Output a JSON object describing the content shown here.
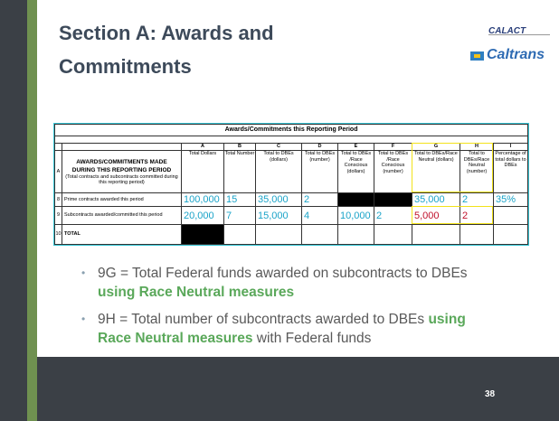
{
  "header": {
    "title": "Section A: Awards and Commitments"
  },
  "logos": [
    "CALACT",
    "Caltrans"
  ],
  "table": {
    "title": "Awards/Commitments this Reporting Period",
    "letters": [
      "A",
      "B",
      "C",
      "D",
      "E",
      "F",
      "G",
      "H",
      "I"
    ],
    "headers": [
      "Total Dollars",
      "Total Number",
      "Total to DBEs (dollars)",
      "Total to DBEs (number)",
      "Total to DBEs /Race Conscious (dollars)",
      "Total to DBEs /Race Conscious (number)",
      "Total to DBEs/Race Neutral (dollars)",
      "Total to DBEs/Race Neutral (number)",
      "Percentage of total dollars to DBEs"
    ],
    "header_row": {
      "number": "A",
      "label": "AWARDS/COMMITMENTS MADE DURING THIS REPORTING PERIOD",
      "note": "(Total contracts and subcontracts committed during this reporting period)"
    },
    "rows": [
      {
        "number": "8",
        "label": "Prime contracts awarded this period",
        "cells": [
          "100,000",
          "15",
          "35,000",
          "2",
          null,
          null,
          "35,000",
          "2",
          "35%"
        ]
      },
      {
        "number": "9",
        "label": "Subcontracts awarded/committed this period",
        "cells": [
          "20,000",
          "7",
          "15,000",
          "4",
          "10,000",
          "2",
          "5,000",
          "2",
          null
        ]
      },
      {
        "number": "10",
        "label": "TOTAL",
        "cells": [
          null,
          null,
          null,
          null,
          null,
          null,
          null,
          null,
          null
        ]
      }
    ]
  },
  "bullets": [
    [
      {
        "text": "9G = Total Federal funds awarded on subcontracts to DBEs "
      },
      {
        "text": "using Race Neutral measures",
        "emphasis": true
      }
    ],
    [
      {
        "text": "9H = Total number of subcontracts awarded to DBEs "
      },
      {
        "text": "using Race Neutral measures",
        "emphasis": true
      },
      {
        "text": " with Federal funds"
      }
    ]
  ],
  "footer": {
    "page": "38"
  }
}
